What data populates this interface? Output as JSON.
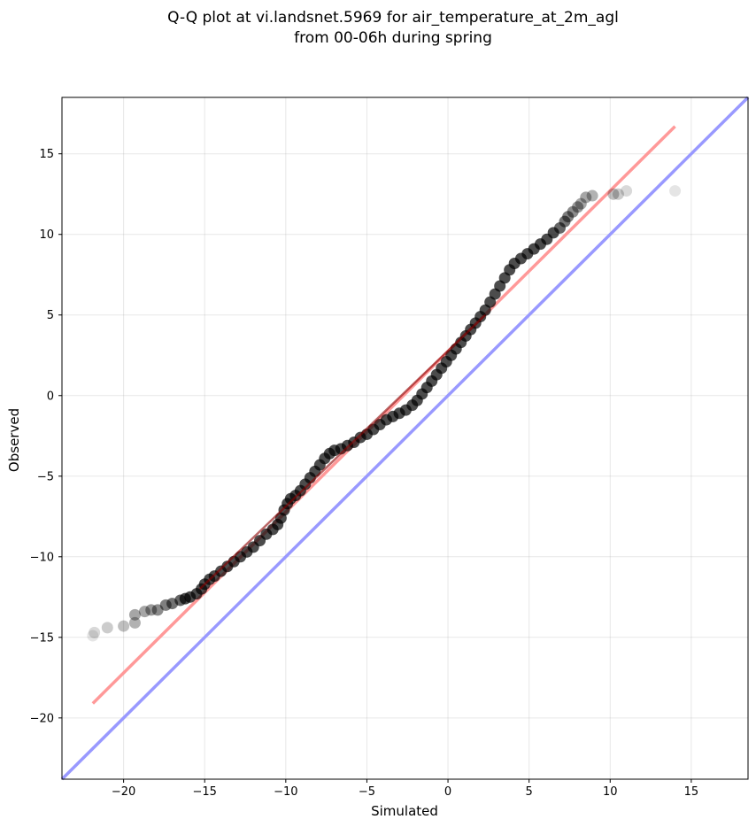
{
  "chart_data": {
    "type": "scatter",
    "title": [
      "Q-Q plot at vi.landsnet.5969 for air_temperature_at_2m_agl",
      "from 00-06h during spring"
    ],
    "xlabel": "Simulated",
    "ylabel": "Observed",
    "xlim": [
      -23.8,
      18.5
    ],
    "ylim": [
      -23.8,
      18.5
    ],
    "xticks": [
      -20,
      -15,
      -10,
      -5,
      0,
      5,
      10,
      15
    ],
    "yticks": [
      -20,
      -15,
      -10,
      -5,
      0,
      5,
      10,
      15
    ],
    "xtick_labels": [
      "−20",
      "−15",
      "−10",
      "−5",
      "0",
      "5",
      "10",
      "15"
    ],
    "ytick_labels": [
      "−20",
      "−15",
      "−10",
      "−5",
      "0",
      "5",
      "10",
      "15"
    ],
    "grid": true,
    "colors": {
      "points": "#000000",
      "fit_line": "#ff9999",
      "identity_line": "#9999ff",
      "inner_fit": "#8b0000"
    },
    "series": [
      {
        "kind": "points",
        "values": [
          [
            -21.9,
            -14.9
          ],
          [
            -21.8,
            -14.7
          ],
          [
            -21.0,
            -14.4
          ],
          [
            -20.0,
            -14.3
          ],
          [
            -19.3,
            -14.1
          ],
          [
            -19.3,
            -13.6
          ],
          [
            -18.7,
            -13.4
          ],
          [
            -18.3,
            -13.3
          ],
          [
            -17.9,
            -13.3
          ],
          [
            -17.4,
            -13.0
          ],
          [
            -17.0,
            -12.9
          ],
          [
            -16.5,
            -12.7
          ],
          [
            -16.2,
            -12.6
          ],
          [
            -15.9,
            -12.5
          ],
          [
            -15.5,
            -12.3
          ],
          [
            -15.2,
            -12.0
          ],
          [
            -15.0,
            -11.7
          ],
          [
            -14.7,
            -11.4
          ],
          [
            -14.4,
            -11.2
          ],
          [
            -14.0,
            -10.9
          ],
          [
            -13.6,
            -10.6
          ],
          [
            -13.2,
            -10.3
          ],
          [
            -12.8,
            -10.0
          ],
          [
            -12.4,
            -9.7
          ],
          [
            -12.0,
            -9.4
          ],
          [
            -11.6,
            -9.0
          ],
          [
            -11.2,
            -8.6
          ],
          [
            -10.8,
            -8.3
          ],
          [
            -10.5,
            -8.0
          ],
          [
            -10.3,
            -7.6
          ],
          [
            -10.1,
            -7.1
          ],
          [
            -9.9,
            -6.7
          ],
          [
            -9.7,
            -6.4
          ],
          [
            -9.4,
            -6.2
          ],
          [
            -9.1,
            -5.9
          ],
          [
            -8.8,
            -5.5
          ],
          [
            -8.5,
            -5.1
          ],
          [
            -8.2,
            -4.7
          ],
          [
            -7.9,
            -4.3
          ],
          [
            -7.6,
            -3.9
          ],
          [
            -7.3,
            -3.6
          ],
          [
            -7.0,
            -3.4
          ],
          [
            -6.6,
            -3.3
          ],
          [
            -6.2,
            -3.1
          ],
          [
            -5.8,
            -2.9
          ],
          [
            -5.4,
            -2.6
          ],
          [
            -5.0,
            -2.4
          ],
          [
            -4.6,
            -2.1
          ],
          [
            -4.2,
            -1.8
          ],
          [
            -3.8,
            -1.5
          ],
          [
            -3.4,
            -1.3
          ],
          [
            -3.0,
            -1.1
          ],
          [
            -2.6,
            -0.9
          ],
          [
            -2.2,
            -0.6
          ],
          [
            -1.9,
            -0.3
          ],
          [
            -1.6,
            0.1
          ],
          [
            -1.3,
            0.5
          ],
          [
            -1.0,
            0.9
          ],
          [
            -0.7,
            1.3
          ],
          [
            -0.4,
            1.7
          ],
          [
            -0.1,
            2.1
          ],
          [
            0.2,
            2.5
          ],
          [
            0.5,
            2.9
          ],
          [
            0.8,
            3.3
          ],
          [
            1.1,
            3.7
          ],
          [
            1.4,
            4.1
          ],
          [
            1.7,
            4.5
          ],
          [
            2.0,
            4.9
          ],
          [
            2.3,
            5.3
          ],
          [
            2.6,
            5.8
          ],
          [
            2.9,
            6.3
          ],
          [
            3.2,
            6.8
          ],
          [
            3.5,
            7.3
          ],
          [
            3.8,
            7.8
          ],
          [
            4.1,
            8.2
          ],
          [
            4.5,
            8.5
          ],
          [
            4.9,
            8.8
          ],
          [
            5.3,
            9.1
          ],
          [
            5.7,
            9.4
          ],
          [
            6.1,
            9.7
          ],
          [
            6.5,
            10.1
          ],
          [
            6.9,
            10.4
          ],
          [
            7.2,
            10.8
          ],
          [
            7.4,
            11.1
          ],
          [
            7.7,
            11.4
          ],
          [
            8.0,
            11.7
          ],
          [
            8.2,
            11.9
          ],
          [
            8.5,
            12.3
          ],
          [
            8.9,
            12.4
          ],
          [
            10.2,
            12.5
          ],
          [
            10.5,
            12.5
          ],
          [
            11.0,
            12.7
          ],
          [
            14.0,
            12.7
          ]
        ]
      },
      {
        "kind": "fit_line",
        "values": [
          [
            -21.9,
            -19.1
          ],
          [
            14.0,
            16.7
          ]
        ]
      },
      {
        "kind": "inner_fit",
        "values": [
          [
            -15.3,
            -12.0
          ],
          [
            2.3,
            5.0
          ]
        ]
      },
      {
        "kind": "identity_line",
        "values": [
          [
            -23.8,
            -23.8
          ],
          [
            18.5,
            18.5
          ]
        ]
      }
    ]
  }
}
